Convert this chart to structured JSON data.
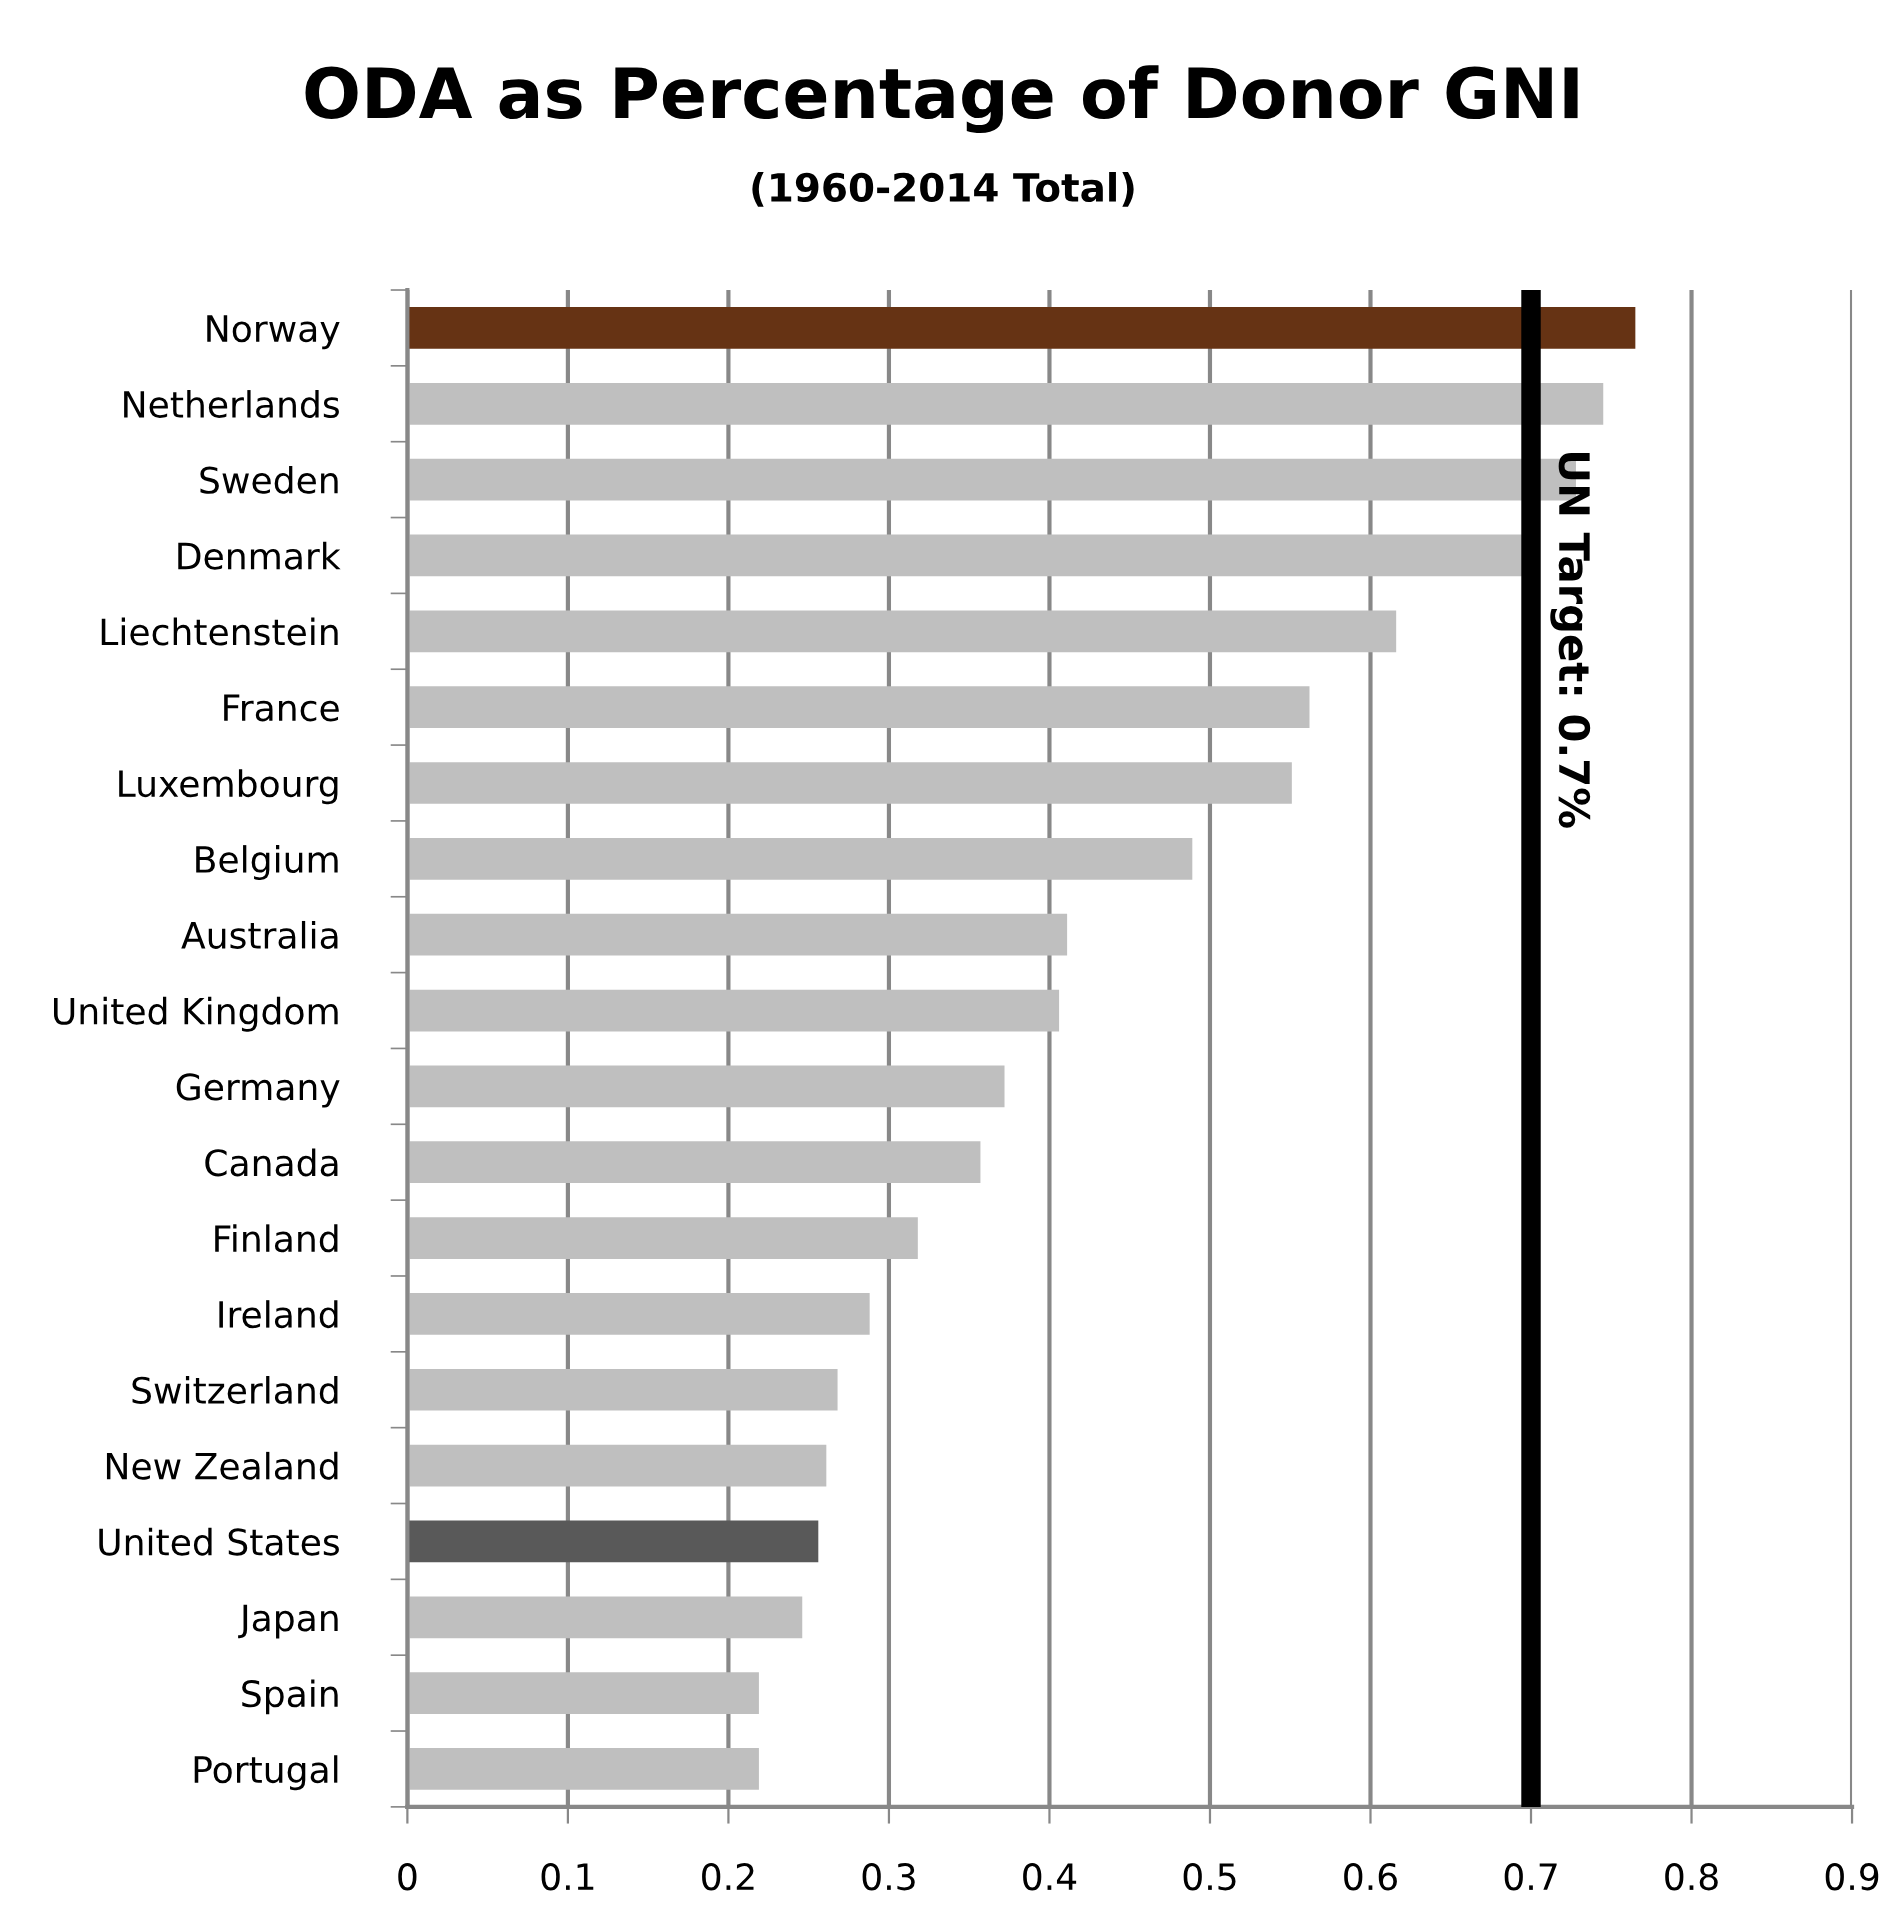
{
  "chart_data": {
    "type": "bar",
    "orientation": "horizontal",
    "title": "ODA as Percentage of Donor GNI",
    "subtitle": "(1960-2014 Total)",
    "categories": [
      "Norway",
      "Netherlands",
      "Sweden",
      "Denmark",
      "Liechtenstein",
      "France",
      "Luxembourg",
      "Belgium",
      "Australia",
      "United Kingdom",
      "Germany",
      "Canada",
      "Finland",
      "Ireland",
      "Switzerland",
      "New Zealand",
      "United States",
      "Japan",
      "Spain",
      "Portugal"
    ],
    "values": [
      0.765,
      0.745,
      0.728,
      0.697,
      0.616,
      0.562,
      0.551,
      0.489,
      0.411,
      0.406,
      0.372,
      0.357,
      0.318,
      0.288,
      0.268,
      0.261,
      0.256,
      0.246,
      0.219,
      0.219
    ],
    "colors": [
      "#663314",
      "#bfbfbf",
      "#bfbfbf",
      "#bfbfbf",
      "#bfbfbf",
      "#bfbfbf",
      "#bfbfbf",
      "#bfbfbf",
      "#bfbfbf",
      "#bfbfbf",
      "#bfbfbf",
      "#bfbfbf",
      "#bfbfbf",
      "#bfbfbf",
      "#bfbfbf",
      "#bfbfbf",
      "#595959",
      "#bfbfbf",
      "#bfbfbf",
      "#bfbfbf"
    ],
    "xlim": [
      0,
      0.9
    ],
    "xticks": [
      0,
      0.1,
      0.2,
      0.3,
      0.4,
      0.5,
      0.6,
      0.7,
      0.8,
      0.9
    ],
    "grid": "x",
    "ref_lines": [
      {
        "axis": "x",
        "value": 0.7,
        "label": "UN Target: 0.7%",
        "color": "#000000"
      }
    ]
  }
}
